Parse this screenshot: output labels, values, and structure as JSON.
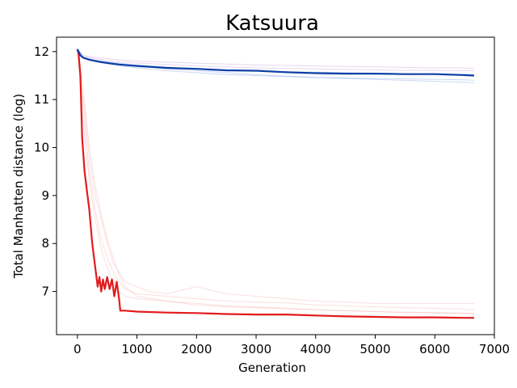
{
  "chart_data": {
    "type": "line",
    "title": "Katsuura",
    "xlabel": "Generation",
    "ylabel": "Total Manhatten distance (log)",
    "xlim": [
      -350,
      7000
    ],
    "ylim": [
      6.1,
      12.3
    ],
    "xticks": [
      0,
      1000,
      2000,
      3000,
      4000,
      5000,
      6000,
      7000
    ],
    "yticks": [
      7,
      8,
      9,
      10,
      11,
      12
    ],
    "grid": false,
    "legend": "none",
    "colors": {
      "red_main": "#e31a1c",
      "blue_main": "#0d3fa6",
      "red_faint": "#f7b6b6",
      "blue_faint": "#8fa8e8",
      "purple_faint": "#c7a6d9"
    },
    "series": [
      {
        "color": "#e31a1c",
        "style": "main",
        "x": [
          0,
          20,
          50,
          80,
          120,
          160,
          200,
          250,
          300,
          340,
          370,
          400,
          430,
          460,
          500,
          540,
          580,
          620,
          660,
          700,
          720,
          800,
          1000,
          1500,
          2000,
          2500,
          3000,
          3500,
          4000,
          4500,
          5000,
          5500,
          6000,
          6500,
          6660
        ],
        "y": [
          12.05,
          11.95,
          11.5,
          10.2,
          9.5,
          9.1,
          8.7,
          8.0,
          7.5,
          7.1,
          7.3,
          7.0,
          7.25,
          7.05,
          7.3,
          7.05,
          7.25,
          6.9,
          7.2,
          6.85,
          6.6,
          6.6,
          6.58,
          6.56,
          6.55,
          6.53,
          6.52,
          6.52,
          6.5,
          6.48,
          6.47,
          6.46,
          6.46,
          6.45,
          6.45
        ]
      },
      {
        "color": "#0d3fa6",
        "style": "main",
        "x": [
          0,
          50,
          100,
          200,
          400,
          700,
          1000,
          1500,
          2000,
          2500,
          3000,
          3500,
          4000,
          4500,
          5000,
          5500,
          6000,
          6500,
          6660
        ],
        "y": [
          12.05,
          11.92,
          11.87,
          11.83,
          11.78,
          11.73,
          11.7,
          11.66,
          11.64,
          11.61,
          11.6,
          11.57,
          11.55,
          11.54,
          11.54,
          11.53,
          11.53,
          11.51,
          11.5
        ]
      },
      {
        "color": "#f7b6b6",
        "style": "faint",
        "x": [
          0,
          100,
          200,
          300,
          400,
          500,
          600,
          700,
          800,
          1000,
          1200,
          1500,
          2000,
          2500,
          3000,
          3500,
          4000,
          4500,
          5000,
          5500,
          6000,
          6500,
          6660
        ],
        "y": [
          12.05,
          11.0,
          9.8,
          9.0,
          8.5,
          8.0,
          7.6,
          7.4,
          7.2,
          7.1,
          7.0,
          6.95,
          7.1,
          6.95,
          6.9,
          6.85,
          6.8,
          6.78,
          6.75,
          6.75,
          6.75,
          6.75,
          6.75
        ]
      },
      {
        "color": "#f7b6b6",
        "style": "faint",
        "x": [
          0,
          100,
          200,
          300,
          400,
          500,
          600,
          700,
          800,
          1000,
          1500,
          2000,
          2500,
          3000,
          3500,
          4000,
          4500,
          5000,
          5500,
          6000,
          6500,
          6660
        ],
        "y": [
          12.05,
          10.8,
          9.5,
          8.7,
          8.1,
          7.7,
          7.4,
          7.2,
          7.05,
          6.95,
          6.9,
          6.85,
          6.8,
          6.78,
          6.76,
          6.72,
          6.7,
          6.68,
          6.66,
          6.65,
          6.63,
          6.62
        ]
      },
      {
        "color": "#f7b6b6",
        "style": "faint",
        "x": [
          0,
          100,
          200,
          300,
          400,
          500,
          600,
          700,
          800,
          1000,
          1500,
          2000,
          2500,
          3000,
          3500,
          4000,
          4500,
          5000,
          5500,
          6000,
          6500,
          6660
        ],
        "y": [
          12.05,
          11.2,
          10.0,
          9.2,
          8.6,
          8.1,
          7.7,
          7.35,
          7.1,
          6.9,
          6.8,
          6.75,
          6.7,
          6.68,
          6.65,
          6.62,
          6.6,
          6.58,
          6.56,
          6.55,
          6.54,
          6.53
        ]
      },
      {
        "color": "#f7b6b6",
        "style": "faint",
        "x": [
          0,
          100,
          200,
          300,
          400,
          500,
          600,
          700,
          800,
          1000,
          1500,
          2000,
          2500,
          3000,
          3500,
          4000,
          4500,
          5000,
          5500,
          6000,
          6500,
          6660
        ],
        "y": [
          12.05,
          10.5,
          9.3,
          8.5,
          7.9,
          7.5,
          7.2,
          7.0,
          6.9,
          6.85,
          6.8,
          6.72,
          6.68,
          6.66,
          6.64,
          6.62,
          6.6,
          6.58,
          6.57,
          6.56,
          6.55,
          6.55
        ]
      },
      {
        "color": "#8fa8e8",
        "style": "faint",
        "x": [
          0,
          100,
          300,
          600,
          1000,
          1500,
          2000,
          2500,
          3000,
          3500,
          4000,
          4500,
          5000,
          5500,
          6000,
          6500,
          6660
        ],
        "y": [
          12.05,
          11.88,
          11.82,
          11.76,
          11.7,
          11.64,
          11.6,
          11.56,
          11.52,
          11.49,
          11.46,
          11.44,
          11.42,
          11.4,
          11.38,
          11.36,
          11.35
        ]
      },
      {
        "color": "#8fa8e8",
        "style": "faint",
        "x": [
          0,
          100,
          300,
          600,
          1000,
          1500,
          2000,
          2500,
          3000,
          3500,
          4000,
          4500,
          5000,
          5500,
          6000,
          6500,
          6660
        ],
        "y": [
          12.05,
          11.86,
          11.8,
          11.72,
          11.66,
          11.6,
          11.56,
          11.52,
          11.5,
          11.48,
          11.46,
          11.45,
          11.44,
          11.43,
          11.42,
          11.41,
          11.4
        ]
      },
      {
        "color": "#c7a6d9",
        "style": "faint",
        "x": [
          0,
          100,
          300,
          600,
          1000,
          1500,
          2000,
          2500,
          3000,
          3500,
          4000,
          4500,
          5000,
          5500,
          6000,
          6500,
          6660
        ],
        "y": [
          12.05,
          11.92,
          11.88,
          11.84,
          11.8,
          11.78,
          11.76,
          11.74,
          11.72,
          11.71,
          11.7,
          11.69,
          11.68,
          11.67,
          11.66,
          11.66,
          11.65
        ]
      },
      {
        "color": "#c7a6d9",
        "style": "faint",
        "x": [
          0,
          100,
          300,
          600,
          1000,
          1500,
          2000,
          2500,
          3000,
          3500,
          4000,
          4500,
          5000,
          5500,
          6000,
          6500,
          6660
        ],
        "y": [
          12.05,
          11.9,
          11.85,
          11.8,
          11.76,
          11.73,
          11.7,
          11.68,
          11.66,
          11.65,
          11.64,
          11.63,
          11.62,
          11.61,
          11.61,
          11.6,
          11.6
        ]
      },
      {
        "color": "#8fa8e8",
        "style": "faint",
        "x": [
          0,
          100,
          300,
          600,
          1000,
          1500,
          2000,
          2500,
          3000,
          3500,
          4000,
          4500,
          5000,
          5500,
          6000,
          6500,
          6660
        ],
        "y": [
          12.05,
          11.87,
          11.82,
          11.77,
          11.72,
          11.68,
          11.64,
          11.62,
          11.6,
          11.58,
          11.57,
          11.56,
          11.55,
          11.54,
          11.53,
          11.52,
          11.52
        ]
      }
    ]
  }
}
